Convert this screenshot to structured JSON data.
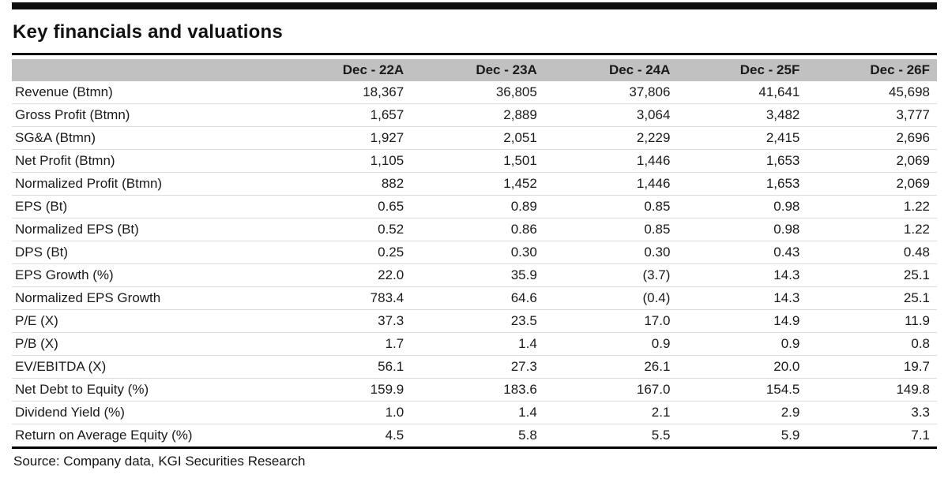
{
  "page": {
    "title": "Key financials and valuations",
    "source": "Source: Company data, KGI Securities Research"
  },
  "table": {
    "label_header": "",
    "columns": [
      "Dec - 22A",
      "Dec - 23A",
      "Dec - 24A",
      "Dec - 25F",
      "Dec - 26F"
    ],
    "rows": [
      {
        "label": "Revenue (Btmn)",
        "values": [
          "18,367",
          "36,805",
          "37,806",
          "41,641",
          "45,698"
        ]
      },
      {
        "label": "Gross Profit (Btmn)",
        "values": [
          "1,657",
          "2,889",
          "3,064",
          "3,482",
          "3,777"
        ]
      },
      {
        "label": "SG&A (Btmn)",
        "values": [
          "1,927",
          "2,051",
          "2,229",
          "2,415",
          "2,696"
        ]
      },
      {
        "label": "Net Profit (Btmn)",
        "values": [
          "1,105",
          "1,501",
          "1,446",
          "1,653",
          "2,069"
        ]
      },
      {
        "label": "Normalized Profit (Btmn)",
        "values": [
          "882",
          "1,452",
          "1,446",
          "1,653",
          "2,069"
        ]
      },
      {
        "label": "EPS (Bt)",
        "values": [
          "0.65",
          "0.89",
          "0.85",
          "0.98",
          "1.22"
        ]
      },
      {
        "label": "Normalized EPS (Bt)",
        "values": [
          "0.52",
          "0.86",
          "0.85",
          "0.98",
          "1.22"
        ]
      },
      {
        "label": "DPS (Bt)",
        "values": [
          "0.25",
          "0.30",
          "0.30",
          "0.43",
          "0.48"
        ]
      },
      {
        "label": "EPS Growth (%)",
        "values": [
          "22.0",
          "35.9",
          "(3.7)",
          "14.3",
          "25.1"
        ]
      },
      {
        "label": "Normalized EPS Growth",
        "values": [
          "783.4",
          "64.6",
          "(0.4)",
          "14.3",
          "25.1"
        ]
      },
      {
        "label": "P/E (X)",
        "values": [
          "37.3",
          "23.5",
          "17.0",
          "14.9",
          "11.9"
        ]
      },
      {
        "label": "P/B (X)",
        "values": [
          "1.7",
          "1.4",
          "0.9",
          "0.9",
          "0.8"
        ]
      },
      {
        "label": "EV/EBITDA (X)",
        "values": [
          "56.1",
          "27.3",
          "26.1",
          "20.0",
          "19.7"
        ]
      },
      {
        "label": "Net Debt to Equity (%)",
        "values": [
          "159.9",
          "183.6",
          "167.0",
          "154.5",
          "149.8"
        ]
      },
      {
        "label": "Dividend Yield (%)",
        "values": [
          "1.0",
          "1.4",
          "2.1",
          "2.9",
          "3.3"
        ]
      },
      {
        "label": "Return on Average Equity (%)",
        "values": [
          "4.5",
          "5.8",
          "5.5",
          "5.9",
          "7.1"
        ]
      }
    ]
  },
  "colors": {
    "header_bg": "#c1c1c1",
    "top_bar": "#0d0d0d",
    "rule": "#000000",
    "row_divider": "#dcdcdc",
    "text": "#1a1a1a"
  }
}
